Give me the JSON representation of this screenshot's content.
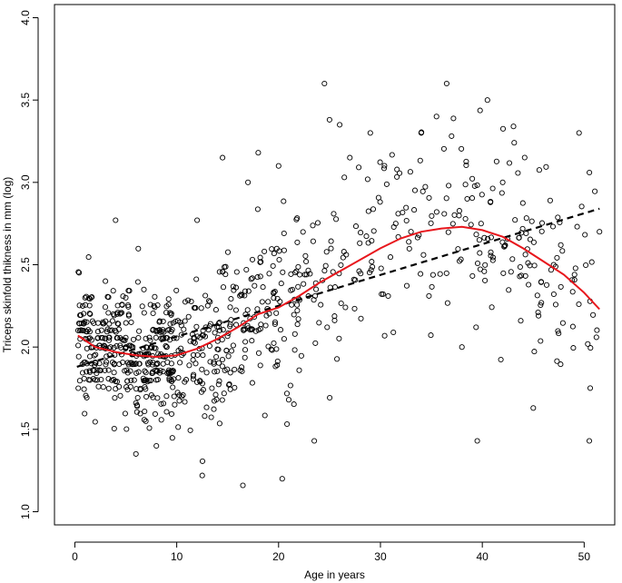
{
  "chart_data": {
    "type": "scatter",
    "title": "",
    "xlabel": "Age in years",
    "ylabel": "Triceps skinfold thikness in mm (log)",
    "xlim": [
      -2,
      53
    ],
    "ylim": [
      0.92,
      4.08
    ],
    "x_ticks": [
      0,
      10,
      20,
      30,
      40,
      50
    ],
    "y_ticks": [
      1.0,
      1.5,
      2.0,
      2.5,
      3.0,
      3.5,
      4.0
    ],
    "x_tick_labels": [
      "0",
      "10",
      "20",
      "30",
      "40",
      "50"
    ],
    "y_tick_labels": [
      "1.0",
      "1.5",
      "2.0",
      "2.5",
      "3.0",
      "3.5",
      "4.0"
    ],
    "grid": false,
    "legend": "none",
    "point_count": 892,
    "points_generation": "approximate cloud: dense for ages 0-20, sparser 20-52; y centred near trend",
    "series": [
      {
        "kind": "points",
        "marker": "open-circle",
        "color": "#000000",
        "sample_points": [
          [
            0.5,
            2.1
          ],
          [
            1.0,
            2.3
          ],
          [
            1.5,
            2.2
          ],
          [
            2.0,
            1.8
          ],
          [
            3.0,
            2.4
          ],
          [
            3.5,
            2.0
          ],
          [
            4.0,
            2.77
          ],
          [
            5.0,
            2.3
          ],
          [
            6.0,
            1.9
          ],
          [
            7.0,
            1.8
          ],
          [
            8.0,
            1.4
          ],
          [
            9.0,
            2.0
          ],
          [
            10.5,
            1.7
          ],
          [
            12.0,
            2.77
          ],
          [
            12.5,
            1.22
          ],
          [
            14.5,
            3.15
          ],
          [
            16.5,
            1.16
          ],
          [
            17.0,
            3.0
          ],
          [
            18.0,
            3.18
          ],
          [
            20.0,
            3.1
          ],
          [
            21.0,
            1.68
          ],
          [
            23.5,
            1.43
          ],
          [
            24.5,
            3.6
          ],
          [
            25.0,
            3.38
          ],
          [
            26.0,
            3.35
          ],
          [
            27.0,
            3.15
          ],
          [
            29.0,
            3.3
          ],
          [
            31.5,
            2.75
          ],
          [
            33.0,
            2.7
          ],
          [
            34.0,
            3.3
          ],
          [
            35.5,
            3.4
          ],
          [
            36.5,
            3.6
          ],
          [
            38.0,
            2.0
          ],
          [
            39.5,
            1.43
          ],
          [
            40.5,
            3.5
          ],
          [
            42.0,
            3.0
          ],
          [
            45.0,
            1.63
          ],
          [
            47.0,
            2.5
          ],
          [
            49.5,
            3.3
          ],
          [
            50.5,
            1.43
          ],
          [
            51.5,
            2.7
          ]
        ]
      },
      {
        "kind": "line",
        "style": "dashed",
        "color": "#000000",
        "x": [
          0.2,
          51.5
        ],
        "y": [
          1.88,
          2.84
        ]
      },
      {
        "kind": "line",
        "style": "solid",
        "color": "#e8161c",
        "x": [
          0.3,
          2,
          4,
          6,
          8,
          10,
          12,
          14,
          16,
          18,
          20,
          22,
          24,
          26,
          28,
          30,
          32,
          34,
          36,
          38,
          40,
          42,
          44,
          46,
          48,
          50,
          51.5
        ],
        "y": [
          2.07,
          2.0,
          1.97,
          1.95,
          1.94,
          1.95,
          1.99,
          2.05,
          2.12,
          2.2,
          2.24,
          2.31,
          2.39,
          2.46,
          2.53,
          2.6,
          2.66,
          2.7,
          2.72,
          2.73,
          2.71,
          2.67,
          2.6,
          2.52,
          2.44,
          2.33,
          2.23
        ]
      }
    ]
  }
}
